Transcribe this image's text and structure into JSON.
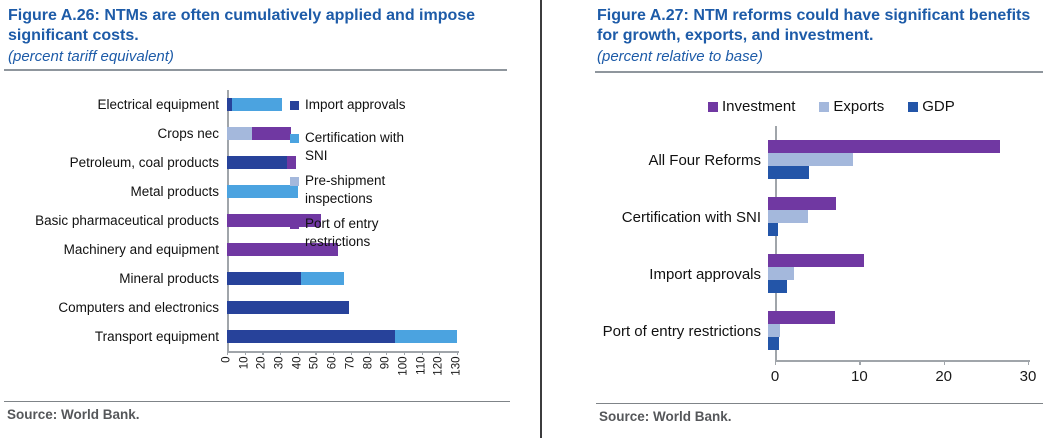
{
  "left_panel": {
    "title": "Figure A.26: NTMs are often cumulatively applied and impose significant costs.",
    "subtitle": "(percent tariff equivalent)",
    "source": "Source: World Bank.",
    "title_color": "#1d5ba8"
  },
  "right_panel": {
    "title": "Figure A.27: NTM reforms could have significant benefits for growth, exports, and investment.",
    "subtitle": "(percent relative to base)",
    "source": "Source: World Bank.",
    "title_color": "#1d5ba8"
  },
  "chart_data": [
    {
      "id": "a26",
      "type": "bar",
      "orientation": "horizontal",
      "mode": "stacked",
      "title": "Figure A.26: NTMs are often cumulatively applied and impose significant costs.",
      "subtitle": "(percent tariff equivalent)",
      "xlabel": "percent tariff equivalent",
      "categories": [
        "Electrical equipment",
        "Crops nec",
        "Petroleum, coal products",
        "Metal products",
        "Basic pharmaceutical products",
        "Machinery and equipment",
        "Mineral products",
        "Computers and electronics",
        "Transport equipment"
      ],
      "series": [
        {
          "name": "Import approvals",
          "color": "#27429a",
          "values": [
            3,
            0,
            34,
            0,
            0,
            0,
            42,
            69,
            95
          ]
        },
        {
          "name": "Certification with SNI",
          "color": "#4ba3e0",
          "values": [
            28,
            0,
            0,
            40,
            0,
            0,
            24,
            0,
            35
          ]
        },
        {
          "name": "Pre-shipment inspections",
          "color": "#a4b8dc",
          "values": [
            0,
            14,
            0,
            0,
            0,
            0,
            0,
            0,
            0
          ]
        },
        {
          "name": "Port of entry restrictions",
          "color": "#7038a2",
          "values": [
            0,
            22,
            5,
            0,
            53,
            63,
            0,
            0,
            0
          ]
        }
      ],
      "xlim": [
        0,
        130
      ],
      "xticks": [
        0,
        10,
        20,
        30,
        40,
        50,
        60,
        70,
        80,
        90,
        100,
        110,
        120,
        130
      ],
      "grid": false,
      "legend_position": "right-inside"
    },
    {
      "id": "a27",
      "type": "bar",
      "orientation": "horizontal",
      "mode": "grouped",
      "title": "Figure A.27: NTM reforms could have significant benefits for growth, exports, and investment.",
      "subtitle": "(percent relative to base)",
      "xlabel": "percent relative to base",
      "categories": [
        "All Four Reforms",
        "Certification with SNI",
        "Import approvals",
        "Port of entry restrictions"
      ],
      "series": [
        {
          "name": "Investment",
          "color": "#7038a2",
          "values": [
            27.5,
            8.1,
            11.4,
            8.0
          ]
        },
        {
          "name": "Exports",
          "color": "#a4b8dc",
          "values": [
            10.1,
            4.8,
            3.1,
            1.4
          ]
        },
        {
          "name": "GDP",
          "color": "#2355a8",
          "values": [
            4.9,
            1.2,
            2.2,
            1.3
          ]
        }
      ],
      "xlim": [
        0,
        30
      ],
      "xticks": [
        0,
        10,
        20,
        30
      ],
      "grid": false,
      "legend_position": "top"
    }
  ]
}
